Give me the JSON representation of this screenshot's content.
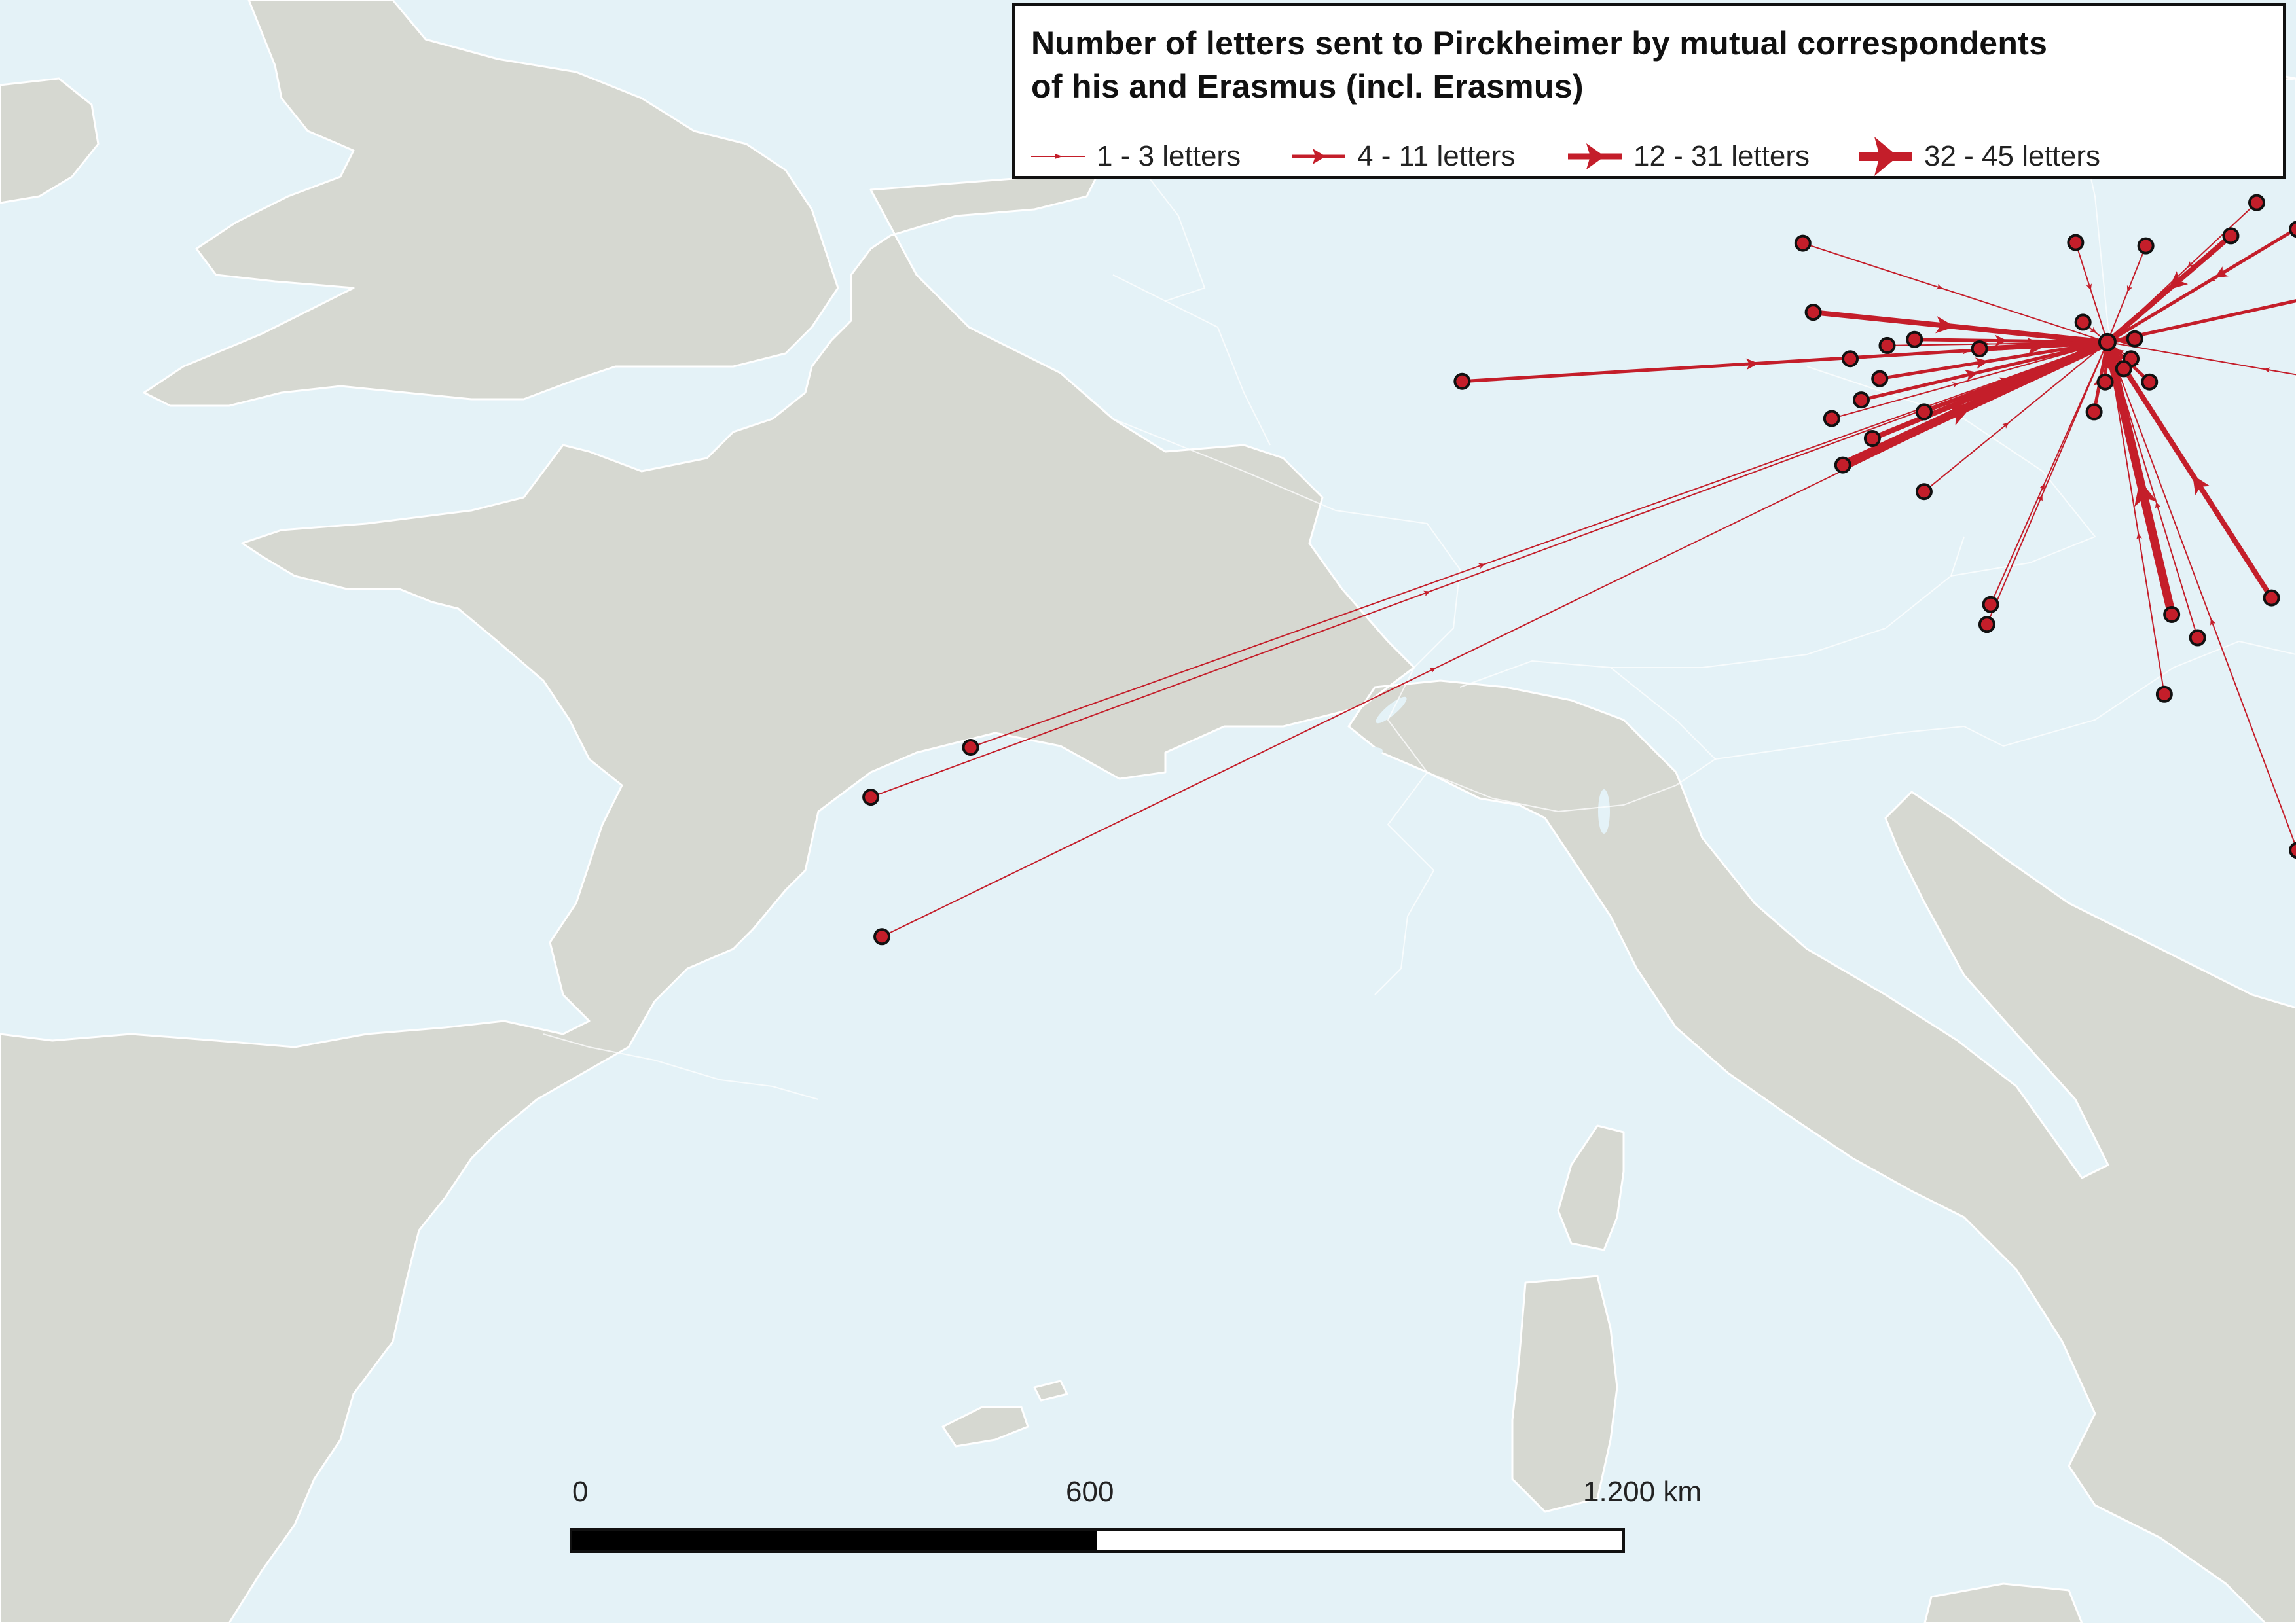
{
  "legend": {
    "title": "Number of letters sent to Pirckheimer by mutual correspondents\nof his and Erasmus (incl. Erasmus)",
    "items": [
      {
        "label": "1 - 3 letters",
        "class": 1
      },
      {
        "label": "4 - 11 letters",
        "class": 2
      },
      {
        "label": "12 - 31 letters",
        "class": 3
      },
      {
        "label": "32 - 45 letters",
        "class": 4
      }
    ]
  },
  "scale": {
    "labels": [
      "0",
      "600",
      "1.200 km"
    ]
  },
  "colors": {
    "flow": "#c41e2a",
    "land": "#d6d8d1",
    "sea": "#e4f2f7",
    "outline": "#111111"
  },
  "map_data": {
    "destination": {
      "lon": 11.08,
      "lat": 49.45
    },
    "origins": [
      {
        "lon": 2.35,
        "lat": 48.86,
        "class": 2
      },
      {
        "lon": 6.96,
        "lat": 50.94,
        "class": 1
      },
      {
        "lon": 7.1,
        "lat": 49.9,
        "class": 3
      },
      {
        "lon": 8.47,
        "lat": 49.49,
        "class": 2
      },
      {
        "lon": 8.1,
        "lat": 49.4,
        "class": 1
      },
      {
        "lon": 7.6,
        "lat": 49.2,
        "class": 1
      },
      {
        "lon": 9.35,
        "lat": 49.35,
        "class": 3
      },
      {
        "lon": 10.65,
        "lat": 50.95,
        "class": 1
      },
      {
        "lon": 11.6,
        "lat": 50.9,
        "class": 1
      },
      {
        "lon": 10.75,
        "lat": 49.75,
        "class": 1
      },
      {
        "lon": 11.45,
        "lat": 49.5,
        "class": 2
      },
      {
        "lon": 13.85,
        "lat": 51.3,
        "class": 2
      },
      {
        "lon": 13.65,
        "lat": 51.15,
        "class": 1
      },
      {
        "lon": 13.1,
        "lat": 51.55,
        "class": 1
      },
      {
        "lon": 12.75,
        "lat": 51.05,
        "class": 3
      },
      {
        "lon": 15.8,
        "lat": 50.6,
        "class": 2
      },
      {
        "lon": 15.0,
        "lat": 48.7,
        "class": 1
      },
      {
        "lon": 11.4,
        "lat": 49.2,
        "class": 1
      },
      {
        "lon": 11.3,
        "lat": 49.05,
        "class": 2
      },
      {
        "lon": 11.65,
        "lat": 48.85,
        "class": 2
      },
      {
        "lon": 11.05,
        "lat": 48.85,
        "class": 2
      },
      {
        "lon": 10.9,
        "lat": 48.4,
        "class": 2
      },
      {
        "lon": 8.0,
        "lat": 48.9,
        "class": 2
      },
      {
        "lon": 7.75,
        "lat": 48.58,
        "class": 2
      },
      {
        "lon": 7.35,
        "lat": 48.3,
        "class": 1
      },
      {
        "lon": 7.9,
        "lat": 48.0,
        "class": 3
      },
      {
        "lon": 8.6,
        "lat": 48.4,
        "class": 2
      },
      {
        "lon": 7.5,
        "lat": 47.6,
        "class": 4
      },
      {
        "lon": 8.6,
        "lat": 47.2,
        "class": 1
      },
      {
        "lon": 11.95,
        "lat": 45.35,
        "class": 4
      },
      {
        "lon": 12.3,
        "lat": 45.0,
        "class": 1
      },
      {
        "lon": 13.3,
        "lat": 45.6,
        "class": 3
      },
      {
        "lon": 9.5,
        "lat": 45.5,
        "class": 1
      },
      {
        "lon": 9.45,
        "lat": 45.2,
        "class": 1
      },
      {
        "lon": 11.85,
        "lat": 44.15,
        "class": 1
      },
      {
        "lon": 13.65,
        "lat": 41.8,
        "class": 1
      },
      {
        "lon": -4.3,
        "lat": 43.35,
        "class": 1
      },
      {
        "lon": -5.65,
        "lat": 42.6,
        "class": 1
      },
      {
        "lon": -5.5,
        "lat": 40.5,
        "class": 1
      }
    ]
  }
}
